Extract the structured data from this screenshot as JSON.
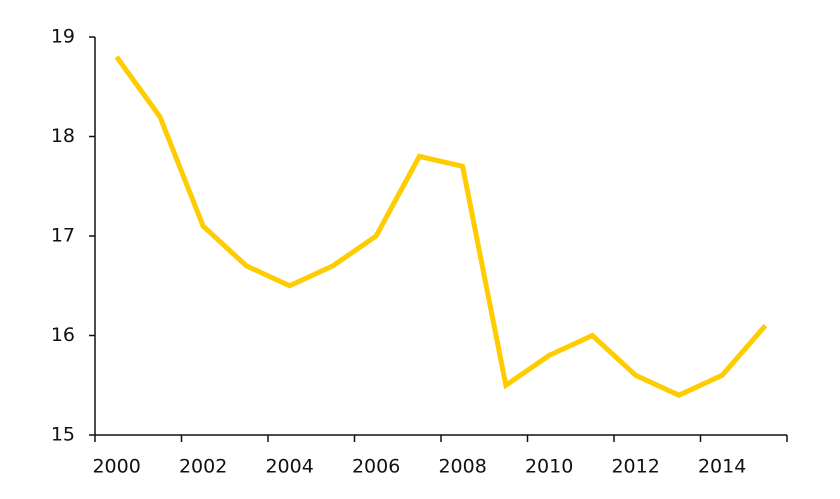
{
  "chart_data": {
    "type": "line",
    "categories": [
      "2000",
      null,
      "2002",
      null,
      "2004",
      null,
      "2006",
      null,
      "2008",
      null,
      "2010",
      null,
      "2012",
      null,
      "2014",
      null
    ],
    "series": [
      {
        "color": "#ffcc00",
        "values": [
          18.8,
          18.2,
          17.1,
          16.7,
          16.5,
          16.7,
          17.0,
          17.8,
          17.7,
          15.5,
          15.8,
          16.0,
          15.6,
          15.4,
          15.6,
          16.1
        ]
      }
    ],
    "ylim": [
      15,
      19
    ],
    "yticks": [
      15,
      16,
      17,
      18,
      19
    ]
  }
}
